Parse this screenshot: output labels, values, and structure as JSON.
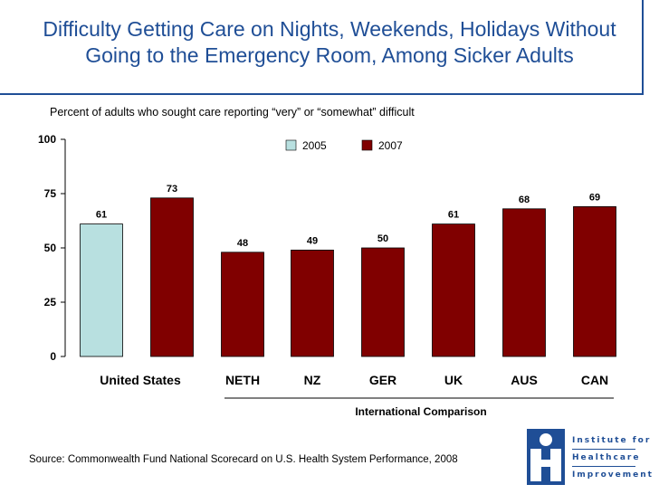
{
  "title": {
    "line1": "Difficulty Getting Care on Nights, Weekends, Holidays Without",
    "line2": "Going to the Emergency Room, Among Sicker Adults"
  },
  "subtitle": "Percent of adults who sought care reporting “very” or “somewhat” difficult",
  "source": "Source: Commonwealth Fund National Scorecard on U.S. Health System Performance, 2008",
  "logo": {
    "line1": "Institute for",
    "line2": "Healthcare",
    "line3": "Improvement"
  },
  "colors": {
    "title": "#1f4e96",
    "series_2005": "#b8e0e0",
    "series_2007": "#800000"
  },
  "chart_data": {
    "type": "bar",
    "categories": [
      "United States",
      "NETH",
      "NZ",
      "GER",
      "UK",
      "AUS",
      "CAN"
    ],
    "series": [
      {
        "name": "2005",
        "values": [
          61,
          null,
          null,
          null,
          null,
          null,
          null
        ]
      },
      {
        "name": "2007",
        "values": [
          73,
          48,
          49,
          50,
          61,
          68,
          69
        ]
      }
    ],
    "ylim": [
      0,
      100
    ],
    "yticks": [
      0,
      25,
      50,
      75,
      100
    ],
    "xlabel": "International Comparison",
    "legend": [
      "2005",
      "2007"
    ],
    "legend_position": "top-right"
  }
}
